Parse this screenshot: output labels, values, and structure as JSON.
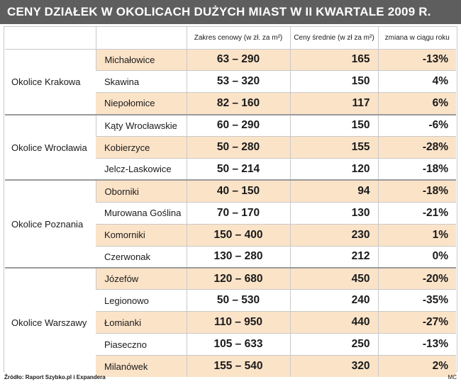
{
  "title": "CENY DZIAŁEK W OKOLICACH DUŻYCH MIAST W II KWARTALE 2009 R.",
  "headers": {
    "range": "Zakres cenowy (w zł. za m²)",
    "avg": "Ceny średnie (w zł za m²)",
    "change": "zmiana w ciągu roku"
  },
  "groups": [
    {
      "region": "Okolice Krakowa",
      "rows": [
        {
          "place": "Michałowice",
          "range": "63 – 290",
          "avg": "165",
          "change": "-13%"
        },
        {
          "place": "Skawina",
          "range": "53 – 320",
          "avg": "150",
          "change": "4%"
        },
        {
          "place": "Niepołomice",
          "range": "82 – 160",
          "avg": "117",
          "change": "6%"
        }
      ]
    },
    {
      "region": "Okolice Wrocławia",
      "rows": [
        {
          "place": "Kąty Wrocławskie",
          "range": "60 – 290",
          "avg": "150",
          "change": "-6%"
        },
        {
          "place": "Kobierzyce",
          "range": "50 – 280",
          "avg": "155",
          "change": "-28%"
        },
        {
          "place": "Jelcz-Laskowice",
          "range": "50 – 214",
          "avg": "120",
          "change": "-18%"
        }
      ]
    },
    {
      "region": "Okolice Poznania",
      "rows": [
        {
          "place": "Oborniki",
          "range": "40 – 150",
          "avg": "94",
          "change": "-18%"
        },
        {
          "place": "Murowana Goślina",
          "range": "70 – 170",
          "avg": "130",
          "change": "-21%"
        },
        {
          "place": "Komorniki",
          "range": "150 – 400",
          "avg": "230",
          "change": "1%"
        },
        {
          "place": "Czerwonak",
          "range": "130 – 280",
          "avg": "212",
          "change": "0%"
        }
      ]
    },
    {
      "region": "Okolice Warszawy",
      "rows": [
        {
          "place": "Józefów",
          "range": "120 – 680",
          "avg": "450",
          "change": "-20%"
        },
        {
          "place": "Legionowo",
          "range": "50 – 530",
          "avg": "240",
          "change": "-35%"
        },
        {
          "place": "Łomianki",
          "range": "110 – 950",
          "avg": "440",
          "change": "-27%"
        },
        {
          "place": "Piaseczno",
          "range": "105 – 633",
          "avg": "250",
          "change": "-13%"
        },
        {
          "place": "Milanówek",
          "range": "155 – 540",
          "avg": "320",
          "change": "2%"
        }
      ]
    }
  ],
  "footer": {
    "source": "Źródło: Raport Szybko.pl i Expandera",
    "credit": "MC"
  },
  "colors": {
    "title_bar": "#5e5e5e",
    "row_shade": "#fbe3c8"
  }
}
